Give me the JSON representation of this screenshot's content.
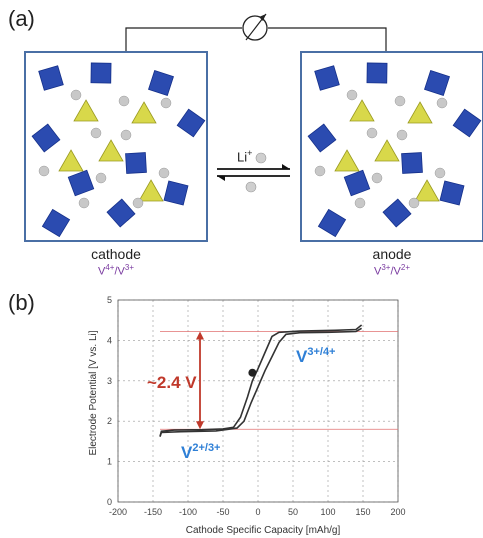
{
  "panel_a": {
    "label": "(a)",
    "cathode": {
      "name": "cathode",
      "redox_a": "V",
      "redox_a_sup": "4+",
      "redox_b": "/V",
      "redox_b_sup": "3+"
    },
    "anode": {
      "name": "anode",
      "redox_a": "V",
      "redox_a_sup": "3+",
      "redox_b": "/V",
      "redox_b_sup": "2+"
    },
    "ion": {
      "text": "Li",
      "sup": "+"
    },
    "meter_icon": "voltmeter-icon",
    "colors": {
      "octahedra": "#2b4bb0",
      "tetrahedra": "#d8d84a",
      "ions": "#c8c8c8",
      "box_border": "#4a6fa5"
    }
  },
  "panel_b": {
    "label": "(b)",
    "voltage_annotation": "~2.4 V",
    "upper_couple": {
      "base": "V",
      "sup": "3+/4+"
    },
    "lower_couple": {
      "base": "V",
      "sup": "2+/3+"
    },
    "colors": {
      "curve": "#333333",
      "annotation": "#c0392b",
      "couple_label": "#2e7fd6",
      "reference_line": "#e07070"
    }
  },
  "chart_data": {
    "type": "line",
    "xlabel": "Cathode Specific Capacity [mAh/g]",
    "ylabel": "Electrode Potential [V vs. Li]",
    "xlim": [
      -200,
      200
    ],
    "ylim": [
      0,
      5
    ],
    "xticks": [
      "-200",
      "-150",
      "-100",
      "-50",
      "0",
      "50",
      "100",
      "150",
      "200"
    ],
    "yticks": [
      "0",
      "1",
      "2",
      "3",
      "4",
      "5"
    ],
    "grid": true,
    "series": [
      {
        "points": [
          [
            -140,
            1.62
          ],
          [
            -138,
            1.75
          ],
          [
            -120,
            1.78
          ],
          [
            -80,
            1.79
          ],
          [
            -50,
            1.81
          ],
          [
            -35,
            1.85
          ],
          [
            -25,
            2.1
          ],
          [
            -15,
            2.6
          ],
          [
            -8,
            3.0
          ],
          [
            0,
            3.3
          ],
          [
            10,
            3.7
          ],
          [
            20,
            4.1
          ],
          [
            30,
            4.2
          ],
          [
            60,
            4.23
          ],
          [
            110,
            4.25
          ],
          [
            140,
            4.27
          ],
          [
            148,
            4.38
          ]
        ]
      },
      {
        "points": [
          [
            148,
            4.3
          ],
          [
            140,
            4.22
          ],
          [
            100,
            4.2
          ],
          [
            60,
            4.19
          ],
          [
            40,
            4.15
          ],
          [
            30,
            3.95
          ],
          [
            20,
            3.6
          ],
          [
            10,
            3.25
          ],
          [
            0,
            2.85
          ],
          [
            -10,
            2.45
          ],
          [
            -20,
            2.0
          ],
          [
            -30,
            1.83
          ],
          [
            -60,
            1.76
          ],
          [
            -110,
            1.74
          ],
          [
            -138,
            1.72
          ],
          [
            -140,
            1.62
          ]
        ]
      }
    ],
    "reference_lines": [
      4.22,
      1.8
    ],
    "marker": [
      -8,
      3.2
    ]
  }
}
